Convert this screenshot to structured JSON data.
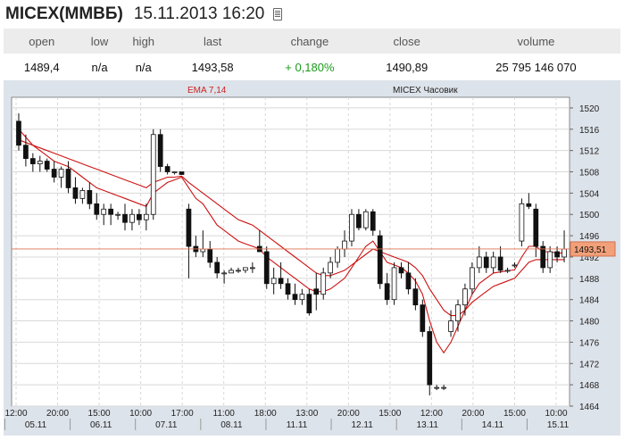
{
  "header": {
    "ticker": "MICEX(ММВБ)",
    "datetime": "15.11.2013 16:20",
    "icon": "table-icon"
  },
  "quote": {
    "columns": [
      "open",
      "low",
      "high",
      "last",
      "change",
      "close",
      "volume"
    ],
    "values": [
      "1489,4",
      "n/a",
      "n/a",
      "1493,58",
      "+ 0,180%",
      "1490,89",
      "25 795 146 070"
    ]
  },
  "chart_data": {
    "type": "candlestick",
    "title": "MICEX Часовик",
    "indicator_label": "EMA 7,14",
    "ylim": [
      1464,
      1522
    ],
    "y_ticks": [
      "1520",
      "1516",
      "1512",
      "1508",
      "1504",
      "1500",
      "1496",
      "1492",
      "1488",
      "1484",
      "1480",
      "1476",
      "1472",
      "1468",
      "1464"
    ],
    "last_price_label": "1493,51",
    "time_ticks": [
      "12:00",
      "20:00",
      "15:00",
      "10:00",
      "17:00",
      "11:00",
      "18:00",
      "13:00",
      "20:00",
      "15:00",
      "12:00",
      "20:00",
      "15:00",
      "10:00"
    ],
    "date_ticks": [
      "05.11",
      "06.11",
      "07.11",
      "08.11",
      "11.11",
      "12.11",
      "13.11",
      "14.11",
      "15.11"
    ],
    "grid": true,
    "candles": [
      {
        "o": 1517.5,
        "h": 1519,
        "l": 1512,
        "c": 1513
      },
      {
        "o": 1513,
        "h": 1515,
        "l": 1509,
        "c": 1510.5
      },
      {
        "o": 1510.5,
        "h": 1511.5,
        "l": 1508,
        "c": 1509.5
      },
      {
        "o": 1509.5,
        "h": 1511,
        "l": 1508,
        "c": 1510
      },
      {
        "o": 1510,
        "h": 1510.5,
        "l": 1508,
        "c": 1508.5
      },
      {
        "o": 1508.5,
        "h": 1510,
        "l": 1506,
        "c": 1507
      },
      {
        "o": 1507,
        "h": 1509,
        "l": 1505,
        "c": 1508.5
      },
      {
        "o": 1508.5,
        "h": 1510,
        "l": 1504,
        "c": 1505
      },
      {
        "o": 1505,
        "h": 1507,
        "l": 1502,
        "c": 1503
      },
      {
        "o": 1503,
        "h": 1505,
        "l": 1502,
        "c": 1504.5
      },
      {
        "o": 1504.5,
        "h": 1506,
        "l": 1501,
        "c": 1502
      },
      {
        "o": 1502,
        "h": 1504,
        "l": 1499,
        "c": 1500
      },
      {
        "o": 1500,
        "h": 1502,
        "l": 1498,
        "c": 1501
      },
      {
        "o": 1501,
        "h": 1502,
        "l": 1498,
        "c": 1500
      },
      {
        "o": 1500,
        "h": 1500.5,
        "l": 1499,
        "c": 1500
      },
      {
        "o": 1500,
        "h": 1502,
        "l": 1497,
        "c": 1498.5
      },
      {
        "o": 1498.5,
        "h": 1501,
        "l": 1497,
        "c": 1500
      },
      {
        "o": 1500,
        "h": 1501,
        "l": 1498,
        "c": 1499
      },
      {
        "o": 1499,
        "h": 1502,
        "l": 1497,
        "c": 1500
      },
      {
        "o": 1500,
        "h": 1516,
        "l": 1499,
        "c": 1515
      },
      {
        "o": 1515,
        "h": 1516,
        "l": 1508,
        "c": 1509
      },
      {
        "o": 1509,
        "h": 1509.5,
        "l": 1507.5,
        "c": 1508
      },
      {
        "o": 1508,
        "h": 1508,
        "l": 1507.5,
        "c": 1508
      },
      {
        "o": 1508,
        "h": 1508,
        "l": 1507.5,
        "c": 1507.5
      },
      {
        "o": 1501,
        "h": 1502,
        "l": 1488,
        "c": 1494
      },
      {
        "o": 1494,
        "h": 1496,
        "l": 1492,
        "c": 1493
      },
      {
        "o": 1493,
        "h": 1497,
        "l": 1492,
        "c": 1493.5
      },
      {
        "o": 1493.5,
        "h": 1495,
        "l": 1490,
        "c": 1491
      },
      {
        "o": 1491,
        "h": 1492,
        "l": 1488,
        "c": 1489
      },
      {
        "o": 1489,
        "h": 1489.5,
        "l": 1487,
        "c": 1489
      },
      {
        "o": 1489,
        "h": 1490,
        "l": 1489,
        "c": 1489.5
      },
      {
        "o": 1489.5,
        "h": 1490,
        "l": 1489,
        "c": 1489.5
      },
      {
        "o": 1489.5,
        "h": 1490,
        "l": 1489,
        "c": 1490
      },
      {
        "o": 1490,
        "h": 1491,
        "l": 1489,
        "c": 1490
      },
      {
        "o": 1494,
        "h": 1497,
        "l": 1493,
        "c": 1493
      },
      {
        "o": 1493,
        "h": 1494,
        "l": 1486,
        "c": 1487
      },
      {
        "o": 1487,
        "h": 1490,
        "l": 1485,
        "c": 1488
      },
      {
        "o": 1488,
        "h": 1491,
        "l": 1486,
        "c": 1487
      },
      {
        "o": 1487,
        "h": 1488,
        "l": 1484,
        "c": 1485
      },
      {
        "o": 1485,
        "h": 1487,
        "l": 1483,
        "c": 1484
      },
      {
        "o": 1484,
        "h": 1486,
        "l": 1483,
        "c": 1485
      },
      {
        "o": 1485,
        "h": 1486,
        "l": 1481,
        "c": 1481.5
      },
      {
        "o": 1486,
        "h": 1489,
        "l": 1482,
        "c": 1485
      },
      {
        "o": 1485,
        "h": 1490,
        "l": 1484,
        "c": 1489
      },
      {
        "o": 1489,
        "h": 1492,
        "l": 1488,
        "c": 1491
      },
      {
        "o": 1491,
        "h": 1494,
        "l": 1490,
        "c": 1493.5
      },
      {
        "o": 1493.5,
        "h": 1497,
        "l": 1492,
        "c": 1495
      },
      {
        "o": 1495,
        "h": 1501,
        "l": 1494,
        "c": 1500
      },
      {
        "o": 1500,
        "h": 1501,
        "l": 1497,
        "c": 1497.5
      },
      {
        "o": 1497.5,
        "h": 1501,
        "l": 1497,
        "c": 1500.5
      },
      {
        "o": 1500.5,
        "h": 1501,
        "l": 1496,
        "c": 1497
      },
      {
        "o": 1496,
        "h": 1497,
        "l": 1486,
        "c": 1487
      },
      {
        "o": 1487,
        "h": 1489,
        "l": 1483,
        "c": 1484
      },
      {
        "o": 1484,
        "h": 1491,
        "l": 1483,
        "c": 1490
      },
      {
        "o": 1490,
        "h": 1491,
        "l": 1488,
        "c": 1489
      },
      {
        "o": 1489,
        "h": 1491,
        "l": 1485,
        "c": 1486
      },
      {
        "o": 1486,
        "h": 1488,
        "l": 1482,
        "c": 1483
      },
      {
        "o": 1483,
        "h": 1484,
        "l": 1477,
        "c": 1478
      },
      {
        "o": 1478,
        "h": 1479,
        "l": 1466,
        "c": 1468
      },
      {
        "o": 1467.5,
        "h": 1468,
        "l": 1467,
        "c": 1467.5
      },
      {
        "o": 1467.5,
        "h": 1468,
        "l": 1467,
        "c": 1467.5
      },
      {
        "o": 1478,
        "h": 1482,
        "l": 1477,
        "c": 1480
      },
      {
        "o": 1480,
        "h": 1484,
        "l": 1478,
        "c": 1483
      },
      {
        "o": 1483,
        "h": 1487,
        "l": 1481,
        "c": 1486
      },
      {
        "o": 1486,
        "h": 1491,
        "l": 1485,
        "c": 1490
      },
      {
        "o": 1490,
        "h": 1494,
        "l": 1489,
        "c": 1492
      },
      {
        "o": 1492,
        "h": 1493,
        "l": 1489,
        "c": 1490
      },
      {
        "o": 1490,
        "h": 1493,
        "l": 1489,
        "c": 1492
      },
      {
        "o": 1492,
        "h": 1494,
        "l": 1489,
        "c": 1489.5
      },
      {
        "o": 1489.5,
        "h": 1490,
        "l": 1489,
        "c": 1489.5
      },
      {
        "o": 1490.5,
        "h": 1491,
        "l": 1490,
        "c": 1490.5
      },
      {
        "o": 1495,
        "h": 1503,
        "l": 1494,
        "c": 1502
      },
      {
        "o": 1502,
        "h": 1504,
        "l": 1501,
        "c": 1501.5
      },
      {
        "o": 1501,
        "h": 1502,
        "l": 1492,
        "c": 1494
      },
      {
        "o": 1494,
        "h": 1495,
        "l": 1489,
        "c": 1490
      },
      {
        "o": 1490,
        "h": 1494,
        "l": 1489,
        "c": 1493
      },
      {
        "o": 1493,
        "h": 1494,
        "l": 1491,
        "c": 1492
      },
      {
        "o": 1492,
        "h": 1497,
        "l": 1491,
        "c": 1493.5
      }
    ],
    "ema_fast": [
      1516,
      1514.5,
      1513,
      1512,
      1511,
      1510,
      1509.5,
      1509,
      1508,
      1507,
      1506,
      1505,
      1504.5,
      1504,
      1503.5,
      1503,
      1502.5,
      1502,
      1501.5,
      1504,
      1505,
      1506,
      1506.5,
      1507,
      1505,
      1503,
      1502,
      1500,
      1498,
      1497,
      1496,
      1495,
      1494.5,
      1494,
      1493.5,
      1492,
      1491,
      1490,
      1489,
      1488,
      1487,
      1486,
      1485.5,
      1485.5,
      1486,
      1487,
      1488,
      1490,
      1492,
      1494,
      1495,
      1493,
      1491,
      1490.5,
      1490,
      1489,
      1487.5,
      1485,
      1480,
      1476,
      1474,
      1476,
      1479,
      1482,
      1485,
      1487,
      1488,
      1489,
      1489.2,
      1489.4,
      1489.6,
      1492,
      1494,
      1494,
      1493,
      1493,
      1492.7,
      1492.8
    ],
    "ema_slow": [
      1514,
      1513.5,
      1513,
      1512.5,
      1512,
      1511.5,
      1511,
      1510.5,
      1510,
      1509.5,
      1509,
      1508.5,
      1508,
      1507.5,
      1507,
      1506.5,
      1506,
      1505.5,
      1505,
      1506,
      1506.5,
      1507,
      1507,
      1507.2,
      1506,
      1505,
      1504,
      1503,
      1502,
      1501,
      1500,
      1499,
      1498.5,
      1498,
      1497,
      1496,
      1495,
      1494,
      1493,
      1492,
      1491,
      1490,
      1489,
      1488.5,
      1488.5,
      1489,
      1489.5,
      1490.5,
      1491.5,
      1492.5,
      1493.5,
      1493,
      1492.5,
      1492,
      1491.5,
      1491,
      1490,
      1488.5,
      1486,
      1484,
      1482,
      1481,
      1481,
      1482,
      1483.5,
      1484.5,
      1485.5,
      1486.5,
      1487,
      1487.5,
      1488,
      1489.5,
      1491,
      1491.5,
      1491.5,
      1491.5,
      1491.5,
      1491.5
    ]
  }
}
